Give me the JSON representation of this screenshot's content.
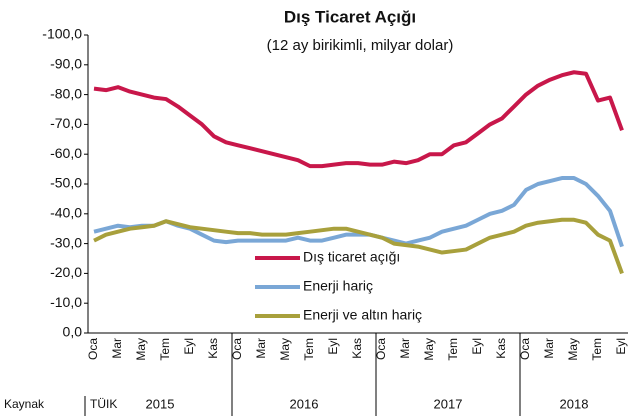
{
  "chart_data": {
    "type": "line",
    "title": "Dış Ticaret Açığı",
    "subtitle": "(12 ay birikimli, milyar dolar)",
    "source": "Kaynak",
    "source_name": "TÜIK",
    "years": [
      "2015",
      "2016",
      "2017",
      "2018"
    ],
    "categories": [
      "Oca",
      null,
      "Mar",
      null,
      "May",
      null,
      "Tem",
      null,
      "Eyl",
      null,
      "Kas",
      null,
      "Oca",
      null,
      "Mar",
      null,
      "May",
      null,
      "Tem",
      null,
      "Eyl",
      null,
      "Kas",
      null,
      "Oca",
      null,
      "Mar",
      null,
      "May",
      null,
      "Tem",
      null,
      "Eyl",
      null,
      "Kas",
      null,
      "Oca",
      null,
      "Mar",
      null,
      "May",
      null,
      "Tem",
      null,
      "Eyl"
    ],
    "ylim": [
      0,
      -100
    ],
    "yticks": [
      {
        "value": -100,
        "label": "-100,0"
      },
      {
        "value": -90,
        "label": "-90,0"
      },
      {
        "value": -80,
        "label": "-80,0"
      },
      {
        "value": -70,
        "label": "-70,0"
      },
      {
        "value": -60,
        "label": "-60,0"
      },
      {
        "value": -50,
        "label": "-50,0"
      },
      {
        "value": -40,
        "label": "-40,0"
      },
      {
        "value": -30,
        "label": "-30,0"
      },
      {
        "value": -20,
        "label": "-20,0"
      },
      {
        "value": -10,
        "label": "-10,0"
      },
      {
        "value": 0,
        "label": "0,0"
      }
    ],
    "series": [
      {
        "name": "Dış ticaret açığı",
        "color": "#c8174a",
        "values": [
          -82,
          -81.5,
          -82.5,
          -81,
          -80,
          -79,
          -78.5,
          -76,
          -73,
          -70,
          -66,
          -64,
          -63,
          -62,
          -61,
          -60,
          -59,
          -58,
          -56,
          -56,
          -56.5,
          -57,
          -57,
          -56.5,
          -56.5,
          -57.5,
          -57,
          -58,
          -60,
          -60,
          -63,
          -64,
          -67,
          -70,
          -72,
          -76,
          -80,
          -83,
          -85,
          -86.5,
          -87.5,
          -87,
          -78,
          -79,
          -68
        ]
      },
      {
        "name": "Enerji hariç",
        "color": "#7aa7d6",
        "values": [
          -34,
          -35,
          -36,
          -35.5,
          -36,
          -36,
          -37.5,
          -36,
          -35,
          -33,
          -31,
          -30.5,
          -31,
          -31,
          -31,
          -31,
          -31,
          -32,
          -31,
          -31,
          -32,
          -33,
          -33,
          -33,
          -32,
          -31,
          -30,
          -31,
          -32,
          -34,
          -35,
          -36,
          -38,
          -40,
          -41,
          -43,
          -48,
          -50,
          -51,
          -52,
          -52,
          -50,
          -46,
          -41,
          -29
        ]
      },
      {
        "name": "Enerji ve altın hariç",
        "color": "#a8a03c",
        "values": [
          -31,
          -33,
          -34,
          -35,
          -35.5,
          -36,
          -37.5,
          -36.5,
          -35.5,
          -35,
          -34.5,
          -34,
          -33.5,
          -33.5,
          -33,
          -33,
          -33,
          -33.5,
          -34,
          -34.5,
          -35,
          -35,
          -34,
          -33,
          -32,
          -30,
          -29.5,
          -29,
          -28,
          -27,
          -27.5,
          -28,
          -30,
          -32,
          -33,
          -34,
          -36,
          -37,
          -37.5,
          -38,
          -38,
          -37,
          -33,
          -31,
          -20
        ]
      }
    ]
  }
}
